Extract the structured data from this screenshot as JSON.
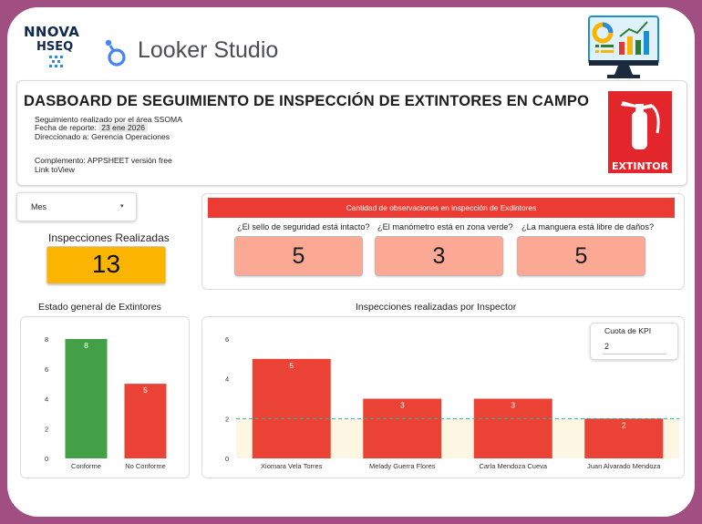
{
  "brand": {
    "logo_line1": "NNOVA",
    "logo_line2": "HSEQ",
    "app_name": "Looker Studio"
  },
  "title_panel": {
    "title": "DASBOARD DE SEGUIMIENTO DE INSPECCIÓN DE EXTINTORES EN CAMPO",
    "line1": "Seguimiento realizado por el área SSOMA",
    "date_label": "Fecha de reporte:",
    "date_value": "23 ene 2026",
    "line3": "Direccionado a: Gerencia Operaciones",
    "line4": "Complemento: APPSHEET versión free",
    "line5": "Link toView",
    "sign_label": "EXTINTOR"
  },
  "filter": {
    "label": "Mes",
    "caret": "▾"
  },
  "kpi": {
    "title": "Inspecciones Realizadas",
    "value": "13",
    "color": "#fbb400"
  },
  "observations": {
    "header": "Cantidad de observaciones en inspección de Exdintores",
    "items": [
      {
        "question": "¿El sello de seguridad está intacto?",
        "value": "5"
      },
      {
        "question": "¿El manómetro está en zona verde?",
        "value": "3"
      },
      {
        "question": "¿La manguera está libre de daños?",
        "value": "5"
      }
    ]
  },
  "quota": {
    "label": "Cuota de KPI",
    "value": "2"
  },
  "chart_data": [
    {
      "type": "bar",
      "title": "Estado general de Extintores",
      "categories": [
        "Conforme",
        "No Conforme"
      ],
      "values": [
        8,
        5
      ],
      "colors": [
        "#43a047",
        "#ea4335"
      ],
      "ylim": [
        0,
        8
      ],
      "yticks": [
        0,
        2,
        4,
        6,
        8
      ],
      "xlabel": "",
      "ylabel": "",
      "grid": false
    },
    {
      "type": "bar",
      "title": "Inspecciones realizadas por Inspector",
      "categories": [
        "Xiomara Vela Torres",
        "Melady Guerra Flores",
        "Carla Mendoza Cueva",
        "Juan Alvarado Mendoza"
      ],
      "values": [
        5,
        3,
        3,
        2
      ],
      "colors": [
        "#ea4335",
        "#ea4335",
        "#ea4335",
        "#ea4335"
      ],
      "ylim": [
        0,
        6
      ],
      "yticks": [
        0,
        2,
        4,
        6
      ],
      "reference_line": 2,
      "reference_band_color": "#fdf6e3",
      "reference_line_color": "#2bb3a3",
      "xlabel": "",
      "ylabel": "",
      "grid": false
    }
  ]
}
